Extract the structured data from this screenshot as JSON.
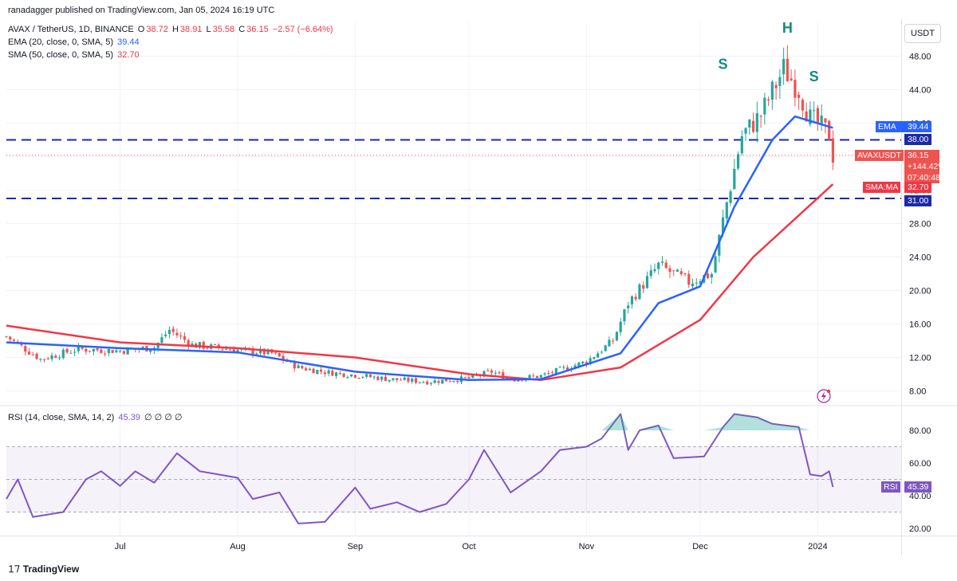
{
  "meta": {
    "published": "ranadagger published on TradingView.com, Jan 05, 2024 16:19 UTC",
    "brand": "TradingView",
    "unit_button": "USDT"
  },
  "header": {
    "symbol": "AVAX / TetherUS, 1D, BINANCE",
    "o_label": "O",
    "o_value": "38.72",
    "h_label": "H",
    "h_value": "38.91",
    "l_label": "L",
    "l_value": "35.58",
    "c_label": "C",
    "c_value": "36.15",
    "change": "−2.57 (−6.64%)",
    "ema_label": "EMA (20, close, 0, SMA, 5)",
    "ema_value": "39.44",
    "sma_label": "SMA (50, close, 0, SMA, 5)",
    "sma_value": "32.70",
    "rsi_label": "RSI (14, close, SMA, 14, 2)",
    "rsi_value": "45.39",
    "rsi_extra": "∅ ∅ ∅ ∅"
  },
  "price_tags": {
    "ema_label": "EMA",
    "ema_value": "39.44",
    "level_38": "38.00",
    "symbol_label": "AVAXUSDT",
    "last_price": "36.15",
    "pct_change": "+144.42%",
    "countdown": "07:40:48",
    "sma_label": "SMA:MA",
    "sma_value": "32.70",
    "level_31": "31.00",
    "rsi_label": "RSI",
    "rsi_value": "45.39"
  },
  "colors": {
    "up": "#26a69a",
    "down": "#ef5350",
    "ema": "#2962ff",
    "sma": "#f23645",
    "rsi": "#7e57c2",
    "level": "#1c2aa5",
    "annotation": "#0f8c82",
    "grid": "#f0f3fa"
  },
  "chart_data": [
    {
      "type": "candlestick",
      "title": "AVAX / TetherUS, 1D, BINANCE",
      "ylim": [
        6.5,
        50.5
      ],
      "yticks": [
        "48.00",
        "44.00",
        "40.00",
        "36.00",
        "32.00",
        "28.00",
        "24.00",
        "20.00",
        "16.00",
        "12.00",
        "8.00"
      ],
      "x_labels": [
        "Jul",
        "Aug",
        "Sep",
        "Oct",
        "Nov",
        "Dec",
        "2024"
      ],
      "horizontal_levels": [
        38.0,
        31.0
      ],
      "annotations": [
        {
          "text": "S",
          "date": "2023-12-07",
          "price": 46.5
        },
        {
          "text": "H",
          "date": "2023-12-24",
          "price": 50.8
        },
        {
          "text": "S",
          "date": "2023-12-31",
          "price": 45.0
        }
      ],
      "segments_close": [
        [
          "2023-06-01",
          14.5
        ],
        [
          "2023-06-10",
          11.8
        ],
        [
          "2023-06-20",
          13.0
        ],
        [
          "2023-07-01",
          12.8
        ],
        [
          "2023-07-10",
          13.2
        ],
        [
          "2023-07-14",
          15.3
        ],
        [
          "2023-07-20",
          13.5
        ],
        [
          "2023-08-01",
          12.9
        ],
        [
          "2023-08-10",
          12.5
        ],
        [
          "2023-08-17",
          10.8
        ],
        [
          "2023-08-25",
          10.2
        ],
        [
          "2023-09-01",
          9.9
        ],
        [
          "2023-09-10",
          9.4
        ],
        [
          "2023-09-20",
          9.1
        ],
        [
          "2023-10-01",
          9.5
        ],
        [
          "2023-10-07",
          10.3
        ],
        [
          "2023-10-12",
          9.4
        ],
        [
          "2023-10-20",
          9.8
        ],
        [
          "2023-11-01",
          11.5
        ],
        [
          "2023-11-08",
          14.0
        ],
        [
          "2023-11-12",
          18.5
        ],
        [
          "2023-11-20",
          23.0
        ],
        [
          "2023-11-28",
          21.0
        ],
        [
          "2023-12-04",
          22.0
        ],
        [
          "2023-12-08",
          30.5
        ],
        [
          "2023-12-12",
          38.5
        ],
        [
          "2023-12-17",
          41.0
        ],
        [
          "2023-12-23",
          46.5
        ],
        [
          "2023-12-27",
          44.0
        ],
        [
          "2023-12-30",
          40.5
        ],
        [
          "2024-01-02",
          39.5
        ],
        [
          "2024-01-04",
          38.7
        ],
        [
          "2024-01-05",
          36.15
        ]
      ],
      "ema20_close": [
        [
          "2023-06-01",
          13.8
        ],
        [
          "2023-07-01",
          13.1
        ],
        [
          "2023-08-01",
          12.6
        ],
        [
          "2023-09-01",
          10.3
        ],
        [
          "2023-10-01",
          9.3
        ],
        [
          "2023-10-20",
          9.4
        ],
        [
          "2023-11-10",
          12.5
        ],
        [
          "2023-11-20",
          18.5
        ],
        [
          "2023-12-01",
          20.5
        ],
        [
          "2023-12-10",
          30.0
        ],
        [
          "2023-12-20",
          38.0
        ],
        [
          "2023-12-26",
          40.8
        ],
        [
          "2024-01-05",
          39.44
        ]
      ],
      "sma50_close": [
        [
          "2023-06-01",
          15.8
        ],
        [
          "2023-07-01",
          13.8
        ],
        [
          "2023-08-01",
          13.1
        ],
        [
          "2023-09-01",
          12.0
        ],
        [
          "2023-10-01",
          10.0
        ],
        [
          "2023-10-20",
          9.3
        ],
        [
          "2023-11-10",
          10.8
        ],
        [
          "2023-12-01",
          16.5
        ],
        [
          "2023-12-15",
          24.0
        ],
        [
          "2024-01-05",
          32.7
        ]
      ]
    },
    {
      "type": "line",
      "title": "RSI (14, close, SMA, 14, 2)",
      "ylim": [
        17,
        93
      ],
      "yticks": [
        "80.00",
        "60.00",
        "40.00",
        "20.00"
      ],
      "bands": {
        "upper": 70,
        "middle": 50,
        "lower": 30
      },
      "x_labels": [
        "Jul",
        "Aug",
        "Sep",
        "Oct",
        "Nov",
        "Dec",
        "2024"
      ],
      "values": [
        [
          "2023-06-01",
          38
        ],
        [
          "2023-06-04",
          50
        ],
        [
          "2023-06-08",
          27
        ],
        [
          "2023-06-16",
          30
        ],
        [
          "2023-06-22",
          50
        ],
        [
          "2023-06-26",
          55
        ],
        [
          "2023-07-01",
          46
        ],
        [
          "2023-07-05",
          55
        ],
        [
          "2023-07-10",
          48
        ],
        [
          "2023-07-16",
          66
        ],
        [
          "2023-07-22",
          55
        ],
        [
          "2023-08-01",
          51
        ],
        [
          "2023-08-05",
          38
        ],
        [
          "2023-08-12",
          42
        ],
        [
          "2023-08-17",
          23
        ],
        [
          "2023-08-24",
          24
        ],
        [
          "2023-09-01",
          45
        ],
        [
          "2023-09-05",
          32
        ],
        [
          "2023-09-12",
          36
        ],
        [
          "2023-09-18",
          30
        ],
        [
          "2023-09-25",
          35
        ],
        [
          "2023-10-01",
          50
        ],
        [
          "2023-10-05",
          68
        ],
        [
          "2023-10-12",
          42
        ],
        [
          "2023-10-20",
          55
        ],
        [
          "2023-10-25",
          68
        ],
        [
          "2023-11-01",
          70
        ],
        [
          "2023-11-05",
          75
        ],
        [
          "2023-11-10",
          90
        ],
        [
          "2023-11-12",
          68
        ],
        [
          "2023-11-15",
          80
        ],
        [
          "2023-11-20",
          83
        ],
        [
          "2023-11-24",
          63
        ],
        [
          "2023-12-02",
          64
        ],
        [
          "2023-12-07",
          82
        ],
        [
          "2023-12-10",
          90
        ],
        [
          "2023-12-16",
          88
        ],
        [
          "2023-12-20",
          84
        ],
        [
          "2023-12-27",
          82
        ],
        [
          "2023-12-30",
          53
        ],
        [
          "2024-01-02",
          52
        ],
        [
          "2024-01-04",
          55
        ],
        [
          "2024-01-05",
          45.39
        ]
      ]
    }
  ]
}
